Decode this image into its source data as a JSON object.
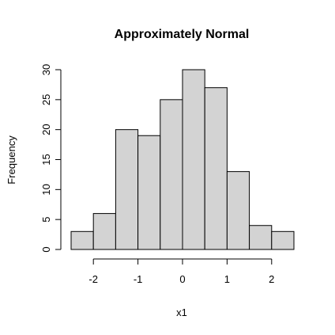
{
  "chart_data": {
    "type": "bar",
    "title": "Approximately Normal",
    "xlabel": "x1",
    "ylabel": "Frequency",
    "bin_edges": [
      -2.5,
      -2.0,
      -1.5,
      -1.0,
      -0.5,
      0.0,
      0.5,
      1.0,
      1.5,
      2.0,
      2.5
    ],
    "values": [
      3,
      6,
      20,
      19,
      25,
      30,
      27,
      13,
      4,
      3
    ],
    "x_ticks": [
      -2,
      -1,
      0,
      1,
      2
    ],
    "x_tick_labels": [
      "-2",
      "-1",
      "0",
      "1",
      "2"
    ],
    "y_ticks": [
      0,
      5,
      10,
      15,
      20,
      25,
      30
    ],
    "y_tick_labels": [
      "0",
      "5",
      "10",
      "15",
      "20",
      "25",
      "30"
    ],
    "xlim": [
      -2.5,
      2.5
    ],
    "ylim": [
      0,
      30
    ],
    "grid": false,
    "legend": "none",
    "bar_color": "#d3d3d3",
    "edge_color": "#000000"
  }
}
